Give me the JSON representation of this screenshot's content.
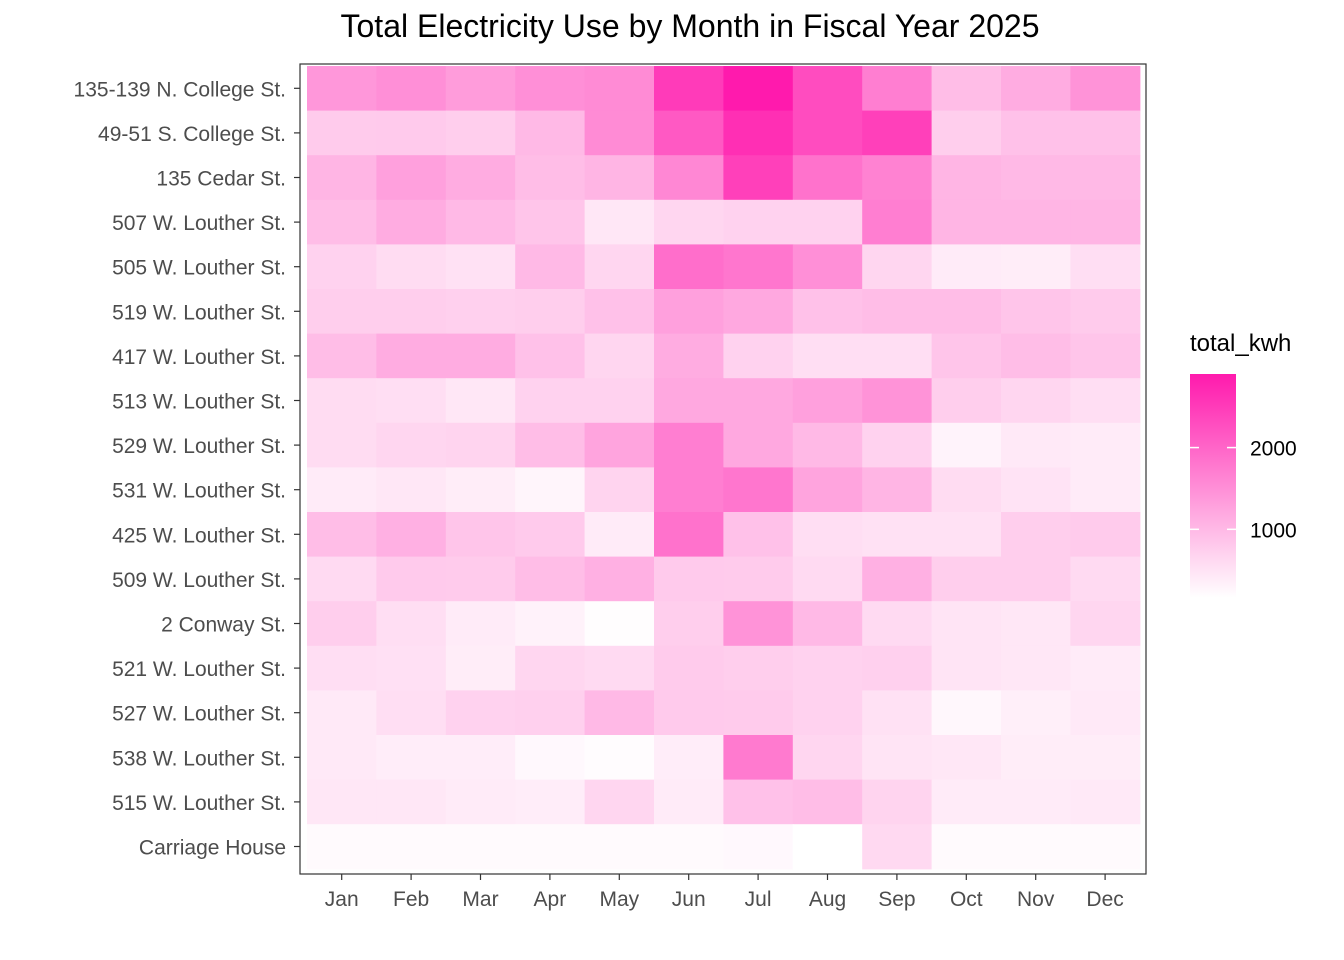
{
  "chart_data": {
    "type": "heatmap",
    "title": "Total Electricity Use by Month in Fiscal Year 2025",
    "xlabel": "",
    "ylabel": "",
    "x_categories": [
      "Jan",
      "Feb",
      "Mar",
      "Apr",
      "May",
      "Jun",
      "Jul",
      "Aug",
      "Sep",
      "Oct",
      "Nov",
      "Dec"
    ],
    "y_categories": [
      "135-139 N. College St.",
      "49-51 S. College St.",
      "135 Cedar St.",
      "507 W. Louther St.",
      "505 W. Louther St.",
      "519 W. Louther St.",
      "417 W. Louther St.",
      "513 W. Louther St.",
      "529 W. Louther St.",
      "531 W. Louther St.",
      "425 W. Louther St.",
      "509 W. Louther St.",
      "2 Conway St.",
      "521 W. Louther St.",
      "527 W. Louther St.",
      "538 W. Louther St.",
      "515 W. Louther St.",
      "Carriage House"
    ],
    "values": [
      [
        1400,
        1500,
        1350,
        1500,
        1550,
        2500,
        2900,
        2300,
        1700,
        950,
        1150,
        1450
      ],
      [
        780,
        800,
        750,
        1000,
        1550,
        2150,
        2650,
        2300,
        2450,
        750,
        900,
        900
      ],
      [
        1050,
        1300,
        1150,
        950,
        1050,
        1600,
        2450,
        1850,
        1650,
        1050,
        1000,
        1000
      ],
      [
        950,
        1150,
        1000,
        850,
        450,
        650,
        700,
        700,
        1700,
        1050,
        1050,
        1050
      ],
      [
        700,
        580,
        520,
        1000,
        650,
        1900,
        1800,
        1500,
        650,
        400,
        380,
        550
      ],
      [
        750,
        750,
        720,
        750,
        900,
        1300,
        1200,
        900,
        950,
        950,
        850,
        780
      ],
      [
        950,
        1150,
        1150,
        900,
        650,
        1150,
        700,
        550,
        550,
        850,
        950,
        850
      ],
      [
        580,
        550,
        450,
        700,
        700,
        1200,
        1200,
        1300,
        1450,
        750,
        650,
        550
      ],
      [
        580,
        650,
        680,
        950,
        1250,
        1700,
        1200,
        1000,
        700,
        300,
        420,
        400
      ],
      [
        400,
        450,
        380,
        280,
        680,
        1700,
        1800,
        1250,
        1050,
        580,
        500,
        400
      ],
      [
        950,
        1100,
        850,
        800,
        400,
        1850,
        900,
        550,
        520,
        520,
        750,
        780
      ],
      [
        600,
        800,
        780,
        950,
        1100,
        800,
        780,
        600,
        1100,
        750,
        750,
        600
      ],
      [
        750,
        550,
        400,
        320,
        180,
        750,
        1450,
        1000,
        600,
        480,
        450,
        650
      ],
      [
        550,
        530,
        380,
        650,
        600,
        780,
        750,
        700,
        720,
        480,
        450,
        400
      ],
      [
        420,
        550,
        700,
        720,
        1000,
        800,
        780,
        700,
        520,
        250,
        350,
        420
      ],
      [
        420,
        370,
        370,
        240,
        200,
        370,
        1750,
        650,
        480,
        450,
        380,
        380
      ],
      [
        450,
        450,
        400,
        370,
        650,
        400,
        900,
        950,
        680,
        400,
        400,
        420
      ],
      [
        220,
        220,
        220,
        220,
        220,
        220,
        240,
        160,
        620,
        220,
        220,
        220
      ]
    ],
    "value_range": [
      160,
      2900
    ],
    "legend": {
      "title": "total_kwh",
      "ticks": [
        1000,
        2000
      ],
      "placement": "right"
    },
    "colors": {
      "low": "#ffffff",
      "high": "#ff1aad"
    },
    "grid": true
  }
}
